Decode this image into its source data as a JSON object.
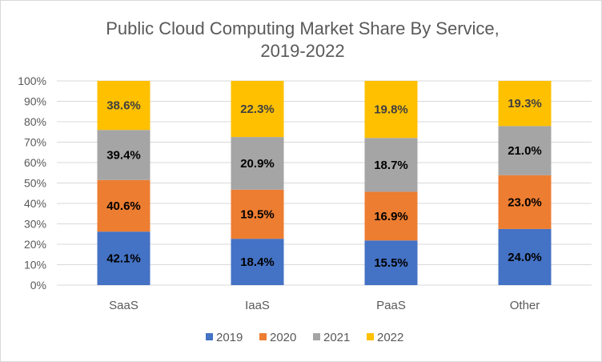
{
  "chart_data": {
    "type": "bar",
    "stacked": "percent",
    "title": "Public Cloud Computing Market Share By Service, 2019-2022",
    "title_lines": [
      "Public Cloud Computing Market Share By Service,",
      "2019-2022"
    ],
    "categories": [
      "SaaS",
      "IaaS",
      "PaaS",
      "Other"
    ],
    "series": [
      {
        "name": "2019",
        "color": "#4472C4",
        "values": [
          42.1,
          18.4,
          15.5,
          24.0
        ]
      },
      {
        "name": "2020",
        "color": "#ED7D31",
        "values": [
          40.6,
          19.5,
          16.9,
          23.0
        ]
      },
      {
        "name": "2021",
        "color": "#A5A5A5",
        "values": [
          39.4,
          20.9,
          18.7,
          21.0
        ]
      },
      {
        "name": "2022",
        "color": "#FFC000",
        "values": [
          38.6,
          22.3,
          19.8,
          19.3
        ]
      }
    ],
    "ylim": [
      0,
      100
    ],
    "yticks": [
      "0%",
      "10%",
      "20%",
      "30%",
      "40%",
      "50%",
      "60%",
      "70%",
      "80%",
      "90%",
      "100%"
    ],
    "xlabel": "",
    "ylabel": "",
    "grid": true,
    "legend": "bottom"
  }
}
